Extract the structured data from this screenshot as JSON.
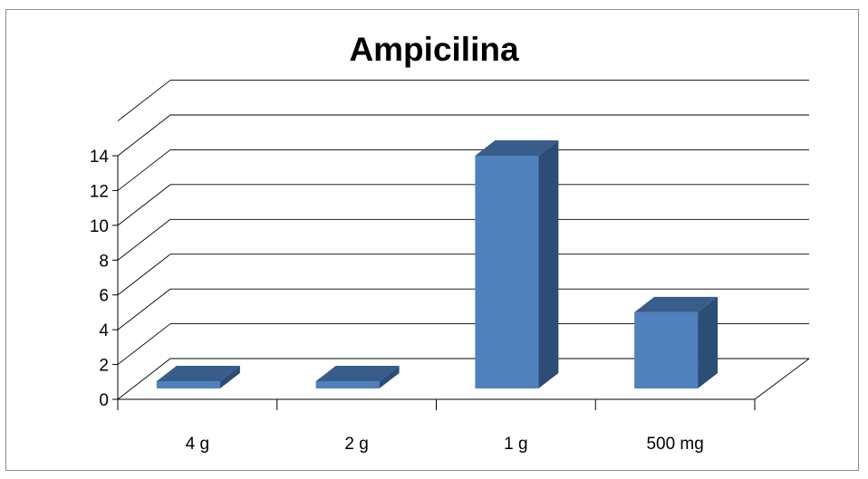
{
  "chart_data": {
    "type": "bar",
    "style": "3d-column",
    "title": "Ampicilina",
    "xlabel": "",
    "ylabel": "",
    "categories": [
      "4 g",
      "2 g",
      "1 g",
      "500 mg"
    ],
    "values": [
      1,
      1,
      14,
      5
    ],
    "ylim": [
      0,
      14
    ],
    "y_ticks": [
      "0",
      "2",
      "4",
      "6",
      "8",
      "10",
      "12",
      "14"
    ],
    "grid": true,
    "legend": "none",
    "colors": {
      "bar_front": "#4f81bd",
      "bar_top": "#385d8a",
      "bar_side": "#2c4d75",
      "gridline": "#000000",
      "frame": "#8c8c8c"
    }
  }
}
